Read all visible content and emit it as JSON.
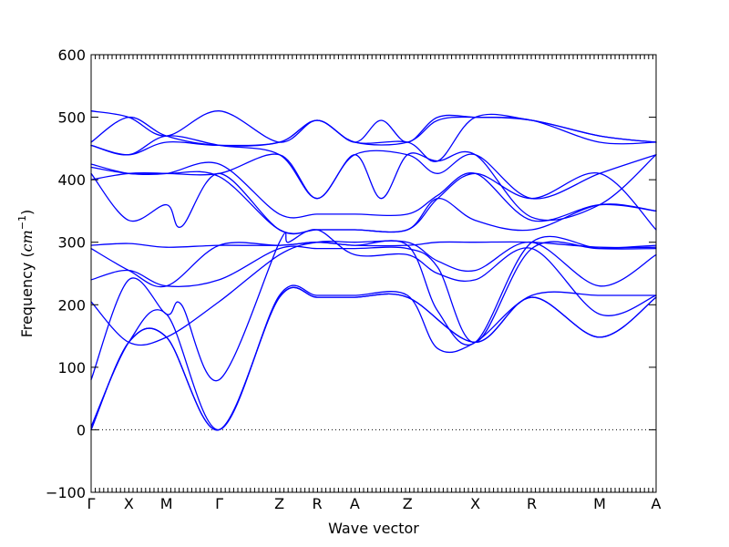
{
  "chart_data": {
    "type": "line",
    "title": "",
    "xlabel": "Wave vector",
    "ylabel_prefix": "Frequency (",
    "ylabel_unit": "cm",
    "ylabel_exp": "−1",
    "ylabel_suffix": ")",
    "ylim": [
      -100,
      600
    ],
    "yticks": [
      -100,
      0,
      100,
      200,
      300,
      400,
      500,
      600
    ],
    "ytick_labels": [
      "−100",
      "0",
      "100",
      "200",
      "300",
      "400",
      "500",
      "600"
    ],
    "zero_line": true,
    "line_color": "#0000ff",
    "xticks": [
      {
        "label": "Γ",
        "x": 0.0
      },
      {
        "label": "X",
        "x": 0.5
      },
      {
        "label": "M",
        "x": 1.0
      },
      {
        "label": "Γ",
        "x": 1.7
      },
      {
        "label": "Z",
        "x": 2.5
      },
      {
        "label": "R",
        "x": 3.0
      },
      {
        "label": "A",
        "x": 3.5
      },
      {
        "label": "Z",
        "x": 4.2
      },
      {
        "label": "X",
        "x": 5.1
      },
      {
        "label": "R",
        "x": 5.85
      },
      {
        "label": "M",
        "x": 6.75
      },
      {
        "label": "A",
        "x": 7.5
      }
    ],
    "xlim": [
      0,
      7.5
    ],
    "series": [
      {
        "values": [
          [
            0,
            0
          ],
          [
            0.5,
            140
          ],
          [
            1.0,
            148
          ],
          [
            1.7,
            0
          ],
          [
            2.5,
            212
          ],
          [
            3.0,
            212
          ],
          [
            3.5,
            212
          ],
          [
            4.2,
            212
          ],
          [
            5.1,
            140
          ],
          [
            5.85,
            212
          ],
          [
            6.75,
            148
          ],
          [
            7.5,
            212
          ]
        ]
      },
      {
        "values": [
          [
            0,
            0
          ],
          [
            0.5,
            140
          ],
          [
            1.0,
            148
          ],
          [
            1.7,
            0
          ],
          [
            2.5,
            212
          ],
          [
            3.0,
            212
          ],
          [
            3.5,
            212
          ],
          [
            4.2,
            212
          ],
          [
            5.1,
            140
          ],
          [
            5.85,
            212
          ],
          [
            6.75,
            148
          ],
          [
            7.5,
            212
          ]
        ]
      },
      {
        "values": [
          [
            0,
            5
          ],
          [
            0.5,
            140
          ],
          [
            1.0,
            185
          ],
          [
            1.7,
            0
          ],
          [
            2.5,
            215
          ],
          [
            3.0,
            215
          ],
          [
            3.5,
            215
          ],
          [
            4.2,
            215
          ],
          [
            4.6,
            130
          ],
          [
            5.1,
            140
          ],
          [
            5.85,
            215
          ],
          [
            6.75,
            215
          ],
          [
            7.5,
            215
          ]
        ]
      },
      {
        "values": [
          [
            0,
            80
          ],
          [
            0.5,
            240
          ],
          [
            1.0,
            185
          ],
          [
            1.2,
            200
          ],
          [
            1.7,
            80
          ],
          [
            2.5,
            300
          ],
          [
            2.62,
            300
          ],
          [
            3.0,
            320
          ],
          [
            3.5,
            280
          ],
          [
            4.2,
            280
          ],
          [
            4.6,
            250
          ],
          [
            5.1,
            240
          ],
          [
            5.85,
            290
          ],
          [
            6.75,
            185
          ],
          [
            7.5,
            215
          ]
        ]
      },
      {
        "values": [
          [
            0,
            205
          ],
          [
            0.5,
            140
          ],
          [
            1.0,
            148
          ],
          [
            1.7,
            205
          ],
          [
            2.5,
            280
          ],
          [
            3.0,
            300
          ],
          [
            3.5,
            300
          ],
          [
            4.2,
            300
          ],
          [
            4.6,
            270
          ],
          [
            5.1,
            255
          ],
          [
            5.85,
            300
          ],
          [
            6.75,
            230
          ],
          [
            7.5,
            280
          ]
        ]
      },
      {
        "values": [
          [
            0,
            240
          ],
          [
            0.5,
            255
          ],
          [
            1.0,
            230
          ],
          [
            1.7,
            240
          ],
          [
            2.5,
            290
          ],
          [
            3.0,
            290
          ],
          [
            3.5,
            290
          ],
          [
            4.2,
            290
          ],
          [
            4.6,
            260
          ],
          [
            5.1,
            140
          ],
          [
            5.85,
            290
          ],
          [
            6.75,
            290
          ],
          [
            7.5,
            295
          ]
        ]
      },
      {
        "values": [
          [
            0,
            290
          ],
          [
            0.5,
            255
          ],
          [
            1.0,
            230
          ],
          [
            1.7,
            295
          ],
          [
            2.5,
            295
          ],
          [
            3.0,
            300
          ],
          [
            3.5,
            295
          ],
          [
            4.2,
            295
          ],
          [
            4.6,
            190
          ],
          [
            5.1,
            140
          ],
          [
            5.85,
            300
          ],
          [
            6.75,
            290
          ],
          [
            7.5,
            290
          ]
        ]
      },
      {
        "values": [
          [
            0,
            295
          ],
          [
            0.5,
            298
          ],
          [
            1.0,
            292
          ],
          [
            1.7,
            295
          ],
          [
            2.5,
            295
          ],
          [
            3.0,
            300
          ],
          [
            3.5,
            295
          ],
          [
            4.2,
            295
          ],
          [
            4.6,
            300
          ],
          [
            5.1,
            300
          ],
          [
            5.85,
            300
          ],
          [
            6.75,
            292
          ],
          [
            7.5,
            292
          ]
        ]
      },
      {
        "values": [
          [
            0,
            400
          ],
          [
            0.5,
            410
          ],
          [
            1.0,
            410
          ],
          [
            1.7,
            405
          ],
          [
            2.5,
            320
          ],
          [
            3.0,
            320
          ],
          [
            3.5,
            320
          ],
          [
            4.2,
            320
          ],
          [
            4.6,
            370
          ],
          [
            5.1,
            410
          ],
          [
            5.85,
            370
          ],
          [
            6.75,
            410
          ],
          [
            7.5,
            320
          ]
        ]
      },
      {
        "values": [
          [
            0,
            410
          ],
          [
            0.5,
            335
          ],
          [
            1.0,
            360
          ],
          [
            1.2,
            325
          ],
          [
            1.7,
            410
          ],
          [
            2.5,
            320
          ],
          [
            3.0,
            320
          ],
          [
            3.5,
            320
          ],
          [
            4.2,
            320
          ],
          [
            4.6,
            370
          ],
          [
            5.1,
            335
          ],
          [
            5.85,
            320
          ],
          [
            6.75,
            360
          ],
          [
            7.5,
            350
          ]
        ]
      },
      {
        "values": [
          [
            0,
            420
          ],
          [
            0.5,
            410
          ],
          [
            1.0,
            410
          ],
          [
            1.7,
            425
          ],
          [
            2.5,
            345
          ],
          [
            3.0,
            345
          ],
          [
            3.5,
            345
          ],
          [
            4.2,
            345
          ],
          [
            4.6,
            375
          ],
          [
            5.1,
            410
          ],
          [
            5.85,
            335
          ],
          [
            6.75,
            360
          ],
          [
            7.5,
            350
          ]
        ]
      },
      {
        "values": [
          [
            0,
            425
          ],
          [
            0.5,
            410
          ],
          [
            1.0,
            410
          ],
          [
            1.7,
            410
          ],
          [
            2.5,
            440
          ],
          [
            3.0,
            370
          ],
          [
            3.5,
            440
          ],
          [
            3.85,
            370
          ],
          [
            4.2,
            440
          ],
          [
            4.6,
            430
          ],
          [
            5.1,
            440
          ],
          [
            5.85,
            340
          ],
          [
            6.75,
            360
          ],
          [
            7.5,
            440
          ]
        ]
      },
      {
        "values": [
          [
            0,
            455
          ],
          [
            0.5,
            440
          ],
          [
            1.0,
            470
          ],
          [
            1.7,
            455
          ],
          [
            2.5,
            440
          ],
          [
            3.0,
            370
          ],
          [
            3.5,
            440
          ],
          [
            4.2,
            440
          ],
          [
            4.6,
            410
          ],
          [
            5.1,
            440
          ],
          [
            5.85,
            370
          ],
          [
            6.75,
            410
          ],
          [
            7.5,
            440
          ]
        ]
      },
      {
        "values": [
          [
            0,
            455
          ],
          [
            0.5,
            440
          ],
          [
            1.0,
            460
          ],
          [
            1.7,
            455
          ],
          [
            2.5,
            460
          ],
          [
            3.0,
            495
          ],
          [
            3.5,
            460
          ],
          [
            4.2,
            460
          ],
          [
            4.6,
            430
          ],
          [
            5.1,
            500
          ],
          [
            5.85,
            495
          ],
          [
            6.75,
            470
          ],
          [
            7.5,
            460
          ]
        ]
      },
      {
        "values": [
          [
            0,
            460
          ],
          [
            0.5,
            500
          ],
          [
            1.0,
            470
          ],
          [
            1.7,
            455
          ],
          [
            2.5,
            460
          ],
          [
            3.0,
            495
          ],
          [
            3.5,
            460
          ],
          [
            3.85,
            495
          ],
          [
            4.2,
            460
          ],
          [
            4.6,
            500
          ],
          [
            5.1,
            500
          ],
          [
            5.85,
            495
          ],
          [
            6.75,
            460
          ],
          [
            7.5,
            460
          ]
        ]
      },
      {
        "values": [
          [
            0,
            510
          ],
          [
            0.5,
            500
          ],
          [
            1.0,
            470
          ],
          [
            1.7,
            510
          ],
          [
            2.5,
            460
          ],
          [
            3.0,
            495
          ],
          [
            3.5,
            460
          ],
          [
            4.2,
            460
          ],
          [
            4.6,
            495
          ],
          [
            5.1,
            500
          ],
          [
            5.85,
            495
          ],
          [
            6.75,
            470
          ],
          [
            7.5,
            460
          ]
        ]
      }
    ]
  }
}
